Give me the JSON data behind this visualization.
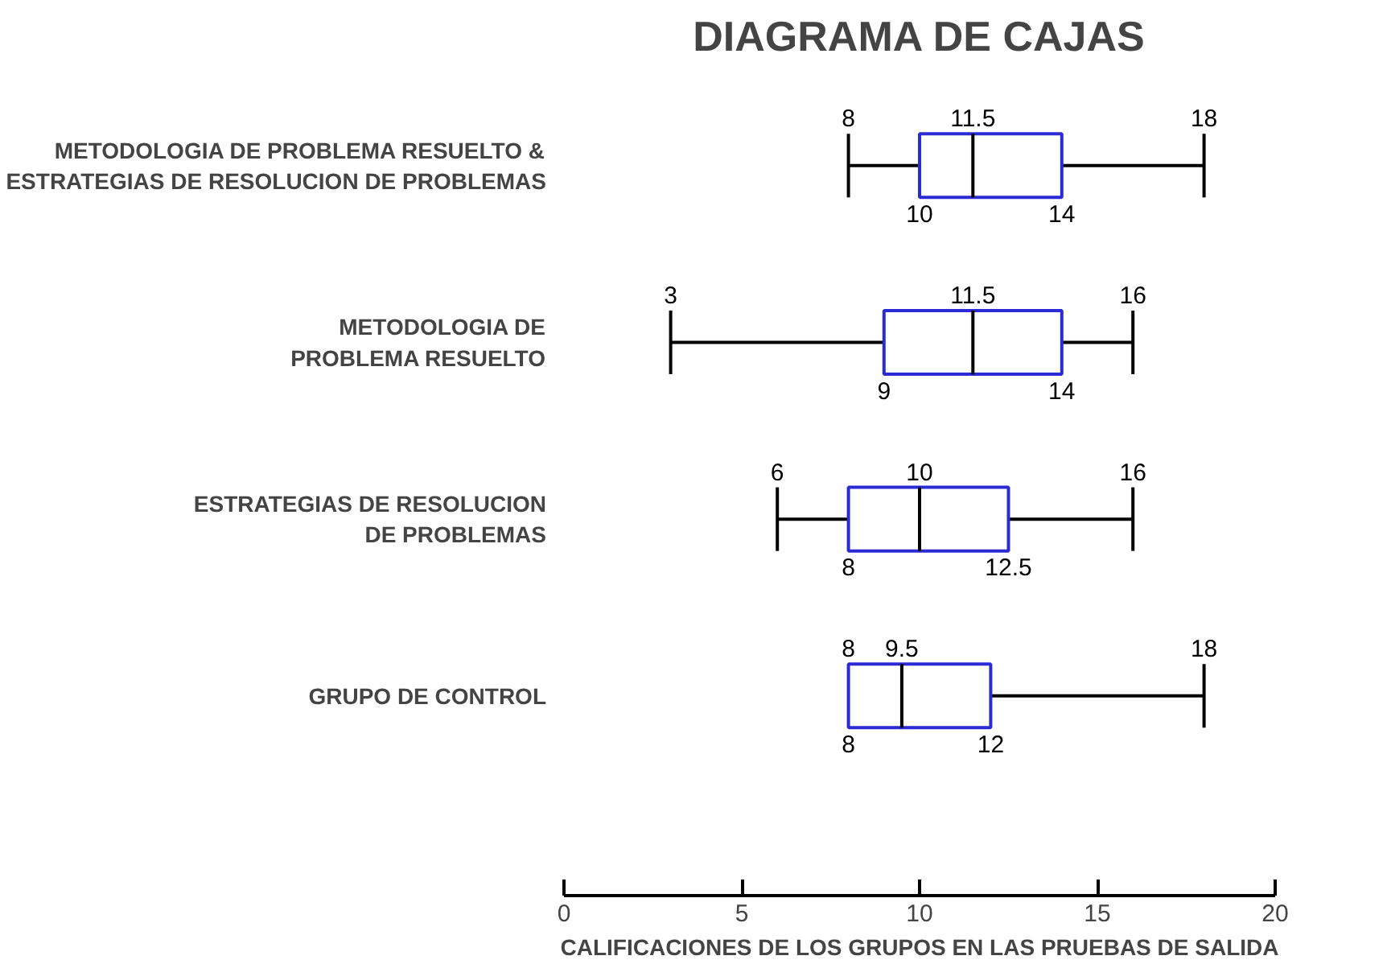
{
  "chart_data": {
    "type": "box",
    "orientation": "horizontal",
    "title": "DIAGRAMA DE CAJAS",
    "xlabel": "CALIFICACIONES DE LOS GRUPOS EN LAS PRUEBAS DE SALIDA",
    "categories": [
      "METODOLOGIA DE PROBLEMA RESUELTO &\nESTRATEGIAS DE RESOLUCION DE PROBLEMAS",
      "METODOLOGIA DE\nPROBLEMA RESUELTO",
      "ESTRATEGIAS DE RESOLUCION\nDE PROBLEMAS",
      "GRUPO DE CONTROL"
    ],
    "boxes": [
      {
        "low": 8,
        "q1": 10,
        "median": 11.5,
        "q3": 14,
        "high": 18
      },
      {
        "low": 3,
        "q1": 9,
        "median": 11.5,
        "q3": 14,
        "high": 16
      },
      {
        "low": 6,
        "q1": 8,
        "median": 10,
        "q3": 12.5,
        "high": 16
      },
      {
        "low": 8,
        "q1": 8,
        "median": 9.5,
        "q3": 12,
        "high": 18
      }
    ],
    "color": "#2b2bd6",
    "annotations": [
      {
        "text": "8",
        "x": 8,
        "y": "METODOLOGIA DE PROBLEMA RESUELTO &\nESTRATEGIAS DE RESOLUCION DE PROBLEMAS"
      },
      {
        "text": "11.5",
        "x": 11.5,
        "y": "METODOLOGIA DE PROBLEMA RESUELTO &\nESTRATEGIAS DE RESOLUCION DE PROBLEMAS"
      },
      {
        "text": "18",
        "x": 18,
        "y": "METODOLOGIA DE PROBLEMA RESUELTO &\nESTRATEGIAS DE RESOLUCION DE PROBLEMAS"
      },
      {
        "text": "10",
        "x": 10,
        "y": "METODOLOGIA DE PROBLEMA RESUELTO &\nESTRATEGIAS DE RESOLUCION DE PROBLEMAS"
      },
      {
        "text": "14",
        "x": 14,
        "y": "METODOLOGIA DE PROBLEMA RESUELTO &\nESTRATEGIAS DE RESOLUCION DE PROBLEMAS"
      },
      {
        "text": "3",
        "x": 3,
        "y": "METODOLOGIA DE\nPROBLEMA RESUELTO"
      },
      {
        "text": "11.5",
        "x": 11.5,
        "y": "METODOLOGIA DE\nPROBLEMA RESUELTO"
      },
      {
        "text": "16",
        "x": 16,
        "y": "METODOLOGIA DE\nPROBLEMA RESUELTO"
      },
      {
        "text": "9",
        "x": 9,
        "y": "METODOLOGIA DE\nPROBLEMA RESUELTO"
      },
      {
        "text": "14",
        "x": 14,
        "y": "METODOLOGIA DE\nPROBLEMA RESUELTO"
      },
      {
        "text": "6",
        "x": 6,
        "y": "ESTRATEGIAS DE RESOLUCION\nDE PROBLEMAS"
      },
      {
        "text": "10",
        "x": 10,
        "y": "ESTRATEGIAS DE RESOLUCION\nDE PROBLEMAS"
      },
      {
        "text": "16",
        "x": 16,
        "y": "ESTRATEGIAS DE RESOLUCION\nDE PROBLEMAS"
      },
      {
        "text": "8",
        "x": 8,
        "y": "ESTRATEGIAS DE RESOLUCION\nDE PROBLEMAS"
      },
      {
        "text": "12.5",
        "x": 12.5,
        "y": "ESTRATEGIAS DE RESOLUCION\nDE PROBLEMAS"
      },
      {
        "text": "8",
        "x": 8,
        "y": "GRUPO DE CONTROL"
      },
      {
        "text": "9.5",
        "x": 9.5,
        "y": "GRUPO DE CONTROL"
      },
      {
        "text": "18",
        "x": 18,
        "y": "GRUPO DE CONTROL"
      },
      {
        "text": "8",
        "x": 8,
        "y": "GRUPO DE CONTROL"
      },
      {
        "text": "12",
        "x": 12,
        "y": "GRUPO DE CONTROL"
      }
    ],
    "xlim": [
      0,
      20
    ],
    "xticks": [
      0,
      5,
      10,
      15,
      20
    ],
    "grid": false
  }
}
